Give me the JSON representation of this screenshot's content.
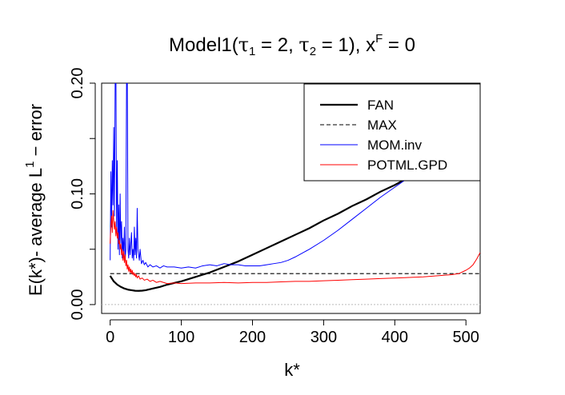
{
  "chart_data": {
    "type": "line",
    "title": {
      "prefix": "Model1(",
      "tau1_symbol": "τ",
      "tau1_index": "1",
      "tau1_value": " = 2, ",
      "tau2_symbol": "τ",
      "tau2_index": "2",
      "tau2_value": " = 1), x",
      "x_superscript": "F",
      "suffix": " = 0"
    },
    "xlabel": "k*",
    "ylabel": {
      "main": "E(k*)- average L",
      "superscript": "1",
      "tail": " − error"
    },
    "xlim": [
      -12,
      520
    ],
    "ylim": [
      -0.008,
      0.2
    ],
    "x_ticks": [
      0,
      100,
      200,
      300,
      400,
      500
    ],
    "x_tick_labels": [
      "0",
      "100",
      "200",
      "300",
      "400",
      "500"
    ],
    "y_ticks": [
      0.0,
      0.1,
      0.2
    ],
    "y_tick_labels": [
      "0.00",
      "0.10",
      "0.20"
    ],
    "y_minor_ticks": [
      0.05,
      0.15
    ],
    "reference_lines": [
      {
        "y": 0,
        "color": "#bbbbbb",
        "style": "dotted"
      }
    ],
    "legend": {
      "position": "top-right",
      "entries": [
        {
          "label": "FAN",
          "color": "#000000",
          "style": "solid-thick"
        },
        {
          "label": "MAX",
          "color": "#000000",
          "style": "dashed"
        },
        {
          "label": "MOM.inv",
          "color": "#0000ff",
          "style": "solid"
        },
        {
          "label": "POTML.GPD",
          "color": "#ff0000",
          "style": "solid"
        }
      ]
    },
    "series": [
      {
        "name": "FAN",
        "color": "#000000",
        "width": 2.2,
        "points": [
          [
            0,
            0.026
          ],
          [
            5,
            0.021
          ],
          [
            10,
            0.018
          ],
          [
            15,
            0.016
          ],
          [
            20,
            0.0145
          ],
          [
            25,
            0.0135
          ],
          [
            30,
            0.013
          ],
          [
            35,
            0.0125
          ],
          [
            40,
            0.0124
          ],
          [
            45,
            0.0126
          ],
          [
            50,
            0.013
          ],
          [
            60,
            0.0145
          ],
          [
            70,
            0.016
          ],
          [
            80,
            0.018
          ],
          [
            100,
            0.021
          ],
          [
            120,
            0.025
          ],
          [
            140,
            0.029
          ],
          [
            160,
            0.034
          ],
          [
            180,
            0.039
          ],
          [
            200,
            0.045
          ],
          [
            220,
            0.051
          ],
          [
            240,
            0.057
          ],
          [
            260,
            0.063
          ],
          [
            280,
            0.069
          ],
          [
            300,
            0.076
          ],
          [
            320,
            0.082
          ],
          [
            340,
            0.089
          ],
          [
            360,
            0.095
          ],
          [
            380,
            0.102
          ],
          [
            400,
            0.108
          ],
          [
            420,
            0.115
          ]
        ]
      },
      {
        "name": "MAX",
        "color": "#000000",
        "width": 1.1,
        "dash": "5,3",
        "points": [
          [
            0,
            0.028
          ],
          [
            520,
            0.028
          ]
        ]
      },
      {
        "name": "MOM.inv",
        "color": "#0000ff",
        "width": 1,
        "points": [
          [
            0,
            0.04
          ],
          [
            1,
            0.12
          ],
          [
            2,
            0.07
          ],
          [
            3,
            0.13
          ],
          [
            4,
            0.09
          ],
          [
            5,
            0.16
          ],
          [
            6,
            0.08
          ],
          [
            7,
            0.2
          ],
          [
            8,
            0.22
          ],
          [
            9,
            0.07
          ],
          [
            10,
            0.13
          ],
          [
            11,
            0.05
          ],
          [
            12,
            0.09
          ],
          [
            13,
            0.045
          ],
          [
            14,
            0.1
          ],
          [
            15,
            0.055
          ],
          [
            16,
            0.075
          ],
          [
            17,
            0.042
          ],
          [
            18,
            0.06
          ],
          [
            19,
            0.045
          ],
          [
            20,
            0.07
          ],
          [
            21,
            0.04
          ],
          [
            22,
            0.05
          ],
          [
            23,
            0.2
          ],
          [
            24,
            0.22
          ],
          [
            25,
            0.05
          ],
          [
            26,
            0.042
          ],
          [
            27,
            0.06
          ],
          [
            28,
            0.045
          ],
          [
            29,
            0.055
          ],
          [
            30,
            0.065
          ],
          [
            31,
            0.042
          ],
          [
            32,
            0.05
          ],
          [
            33,
            0.04
          ],
          [
            34,
            0.07
          ],
          [
            35,
            0.045
          ],
          [
            36,
            0.06
          ],
          [
            37,
            0.042
          ],
          [
            38,
            0.087
          ],
          [
            39,
            0.05
          ],
          [
            40,
            0.045
          ],
          [
            41,
            0.04
          ],
          [
            42,
            0.05
          ],
          [
            44,
            0.037
          ],
          [
            46,
            0.04
          ],
          [
            48,
            0.036
          ],
          [
            50,
            0.038
          ],
          [
            53,
            0.034
          ],
          [
            56,
            0.036
          ],
          [
            60,
            0.034
          ],
          [
            65,
            0.035
          ],
          [
            70,
            0.033
          ],
          [
            75,
            0.035
          ],
          [
            80,
            0.034
          ],
          [
            90,
            0.034
          ],
          [
            100,
            0.033
          ],
          [
            110,
            0.034
          ],
          [
            120,
            0.033
          ],
          [
            130,
            0.035
          ],
          [
            140,
            0.036
          ],
          [
            150,
            0.035
          ],
          [
            160,
            0.037
          ],
          [
            170,
            0.036
          ],
          [
            180,
            0.036
          ],
          [
            190,
            0.035
          ],
          [
            200,
            0.035
          ],
          [
            210,
            0.035
          ],
          [
            220,
            0.036
          ],
          [
            230,
            0.037
          ],
          [
            240,
            0.038
          ],
          [
            250,
            0.04
          ],
          [
            260,
            0.043
          ],
          [
            280,
            0.05
          ],
          [
            300,
            0.058
          ],
          [
            320,
            0.067
          ],
          [
            340,
            0.077
          ],
          [
            360,
            0.087
          ],
          [
            380,
            0.097
          ],
          [
            400,
            0.106
          ],
          [
            420,
            0.115
          ]
        ]
      },
      {
        "name": "POTML.GPD",
        "color": "#ff0000",
        "width": 1,
        "points": [
          [
            0,
            0.055
          ],
          [
            1,
            0.072
          ],
          [
            2,
            0.08
          ],
          [
            3,
            0.065
          ],
          [
            4,
            0.085
          ],
          [
            5,
            0.076
          ],
          [
            6,
            0.068
          ],
          [
            7,
            0.075
          ],
          [
            8,
            0.062
          ],
          [
            9,
            0.07
          ],
          [
            10,
            0.06
          ],
          [
            11,
            0.065
          ],
          [
            12,
            0.055
          ],
          [
            13,
            0.058
          ],
          [
            14,
            0.05
          ],
          [
            15,
            0.055
          ],
          [
            16,
            0.045
          ],
          [
            17,
            0.05
          ],
          [
            18,
            0.04
          ],
          [
            19,
            0.048
          ],
          [
            20,
            0.038
          ],
          [
            21,
            0.045
          ],
          [
            22,
            0.035
          ],
          [
            23,
            0.04
          ],
          [
            24,
            0.032
          ],
          [
            25,
            0.036
          ],
          [
            26,
            0.03
          ],
          [
            27,
            0.034
          ],
          [
            28,
            0.029
          ],
          [
            29,
            0.032
          ],
          [
            30,
            0.028
          ],
          [
            31,
            0.031
          ],
          [
            32,
            0.027
          ],
          [
            33,
            0.029
          ],
          [
            34,
            0.026
          ],
          [
            35,
            0.028
          ],
          [
            36,
            0.025
          ],
          [
            37,
            0.027
          ],
          [
            38,
            0.024
          ],
          [
            40,
            0.026
          ],
          [
            42,
            0.023
          ],
          [
            45,
            0.024
          ],
          [
            48,
            0.022
          ],
          [
            52,
            0.023
          ],
          [
            56,
            0.021
          ],
          [
            60,
            0.022
          ],
          [
            65,
            0.02
          ],
          [
            70,
            0.021
          ],
          [
            80,
            0.019
          ],
          [
            90,
            0.0195
          ],
          [
            100,
            0.019
          ],
          [
            120,
            0.0195
          ],
          [
            140,
            0.0195
          ],
          [
            160,
            0.02
          ],
          [
            180,
            0.0195
          ],
          [
            200,
            0.02
          ],
          [
            220,
            0.02
          ],
          [
            240,
            0.0205
          ],
          [
            260,
            0.021
          ],
          [
            280,
            0.021
          ],
          [
            300,
            0.0215
          ],
          [
            320,
            0.022
          ],
          [
            340,
            0.0225
          ],
          [
            360,
            0.023
          ],
          [
            380,
            0.0235
          ],
          [
            400,
            0.024
          ],
          [
            420,
            0.0245
          ],
          [
            440,
            0.025
          ],
          [
            460,
            0.026
          ],
          [
            480,
            0.027
          ],
          [
            490,
            0.028
          ],
          [
            500,
            0.031
          ],
          [
            505,
            0.033
          ],
          [
            510,
            0.036
          ],
          [
            515,
            0.041
          ],
          [
            520,
            0.047
          ]
        ]
      }
    ]
  }
}
